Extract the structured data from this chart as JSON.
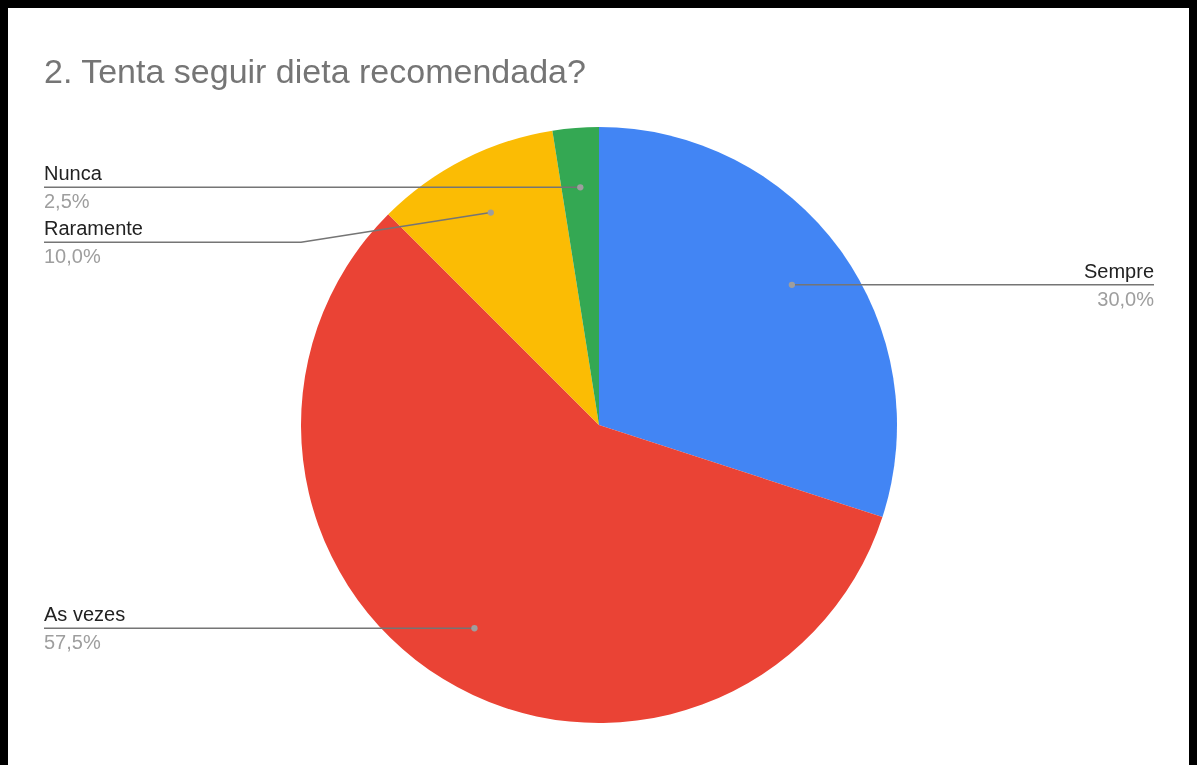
{
  "chart_data": {
    "type": "pie",
    "title": "2. Tenta seguir dieta recomendada?",
    "categories": [
      "Sempre",
      "As vezes",
      "Raramente",
      "Nunca"
    ],
    "values": [
      30,
      57.5,
      10,
      2.5
    ],
    "colors": [
      "#4285f4",
      "#ea4335",
      "#fbbc04",
      "#34a853"
    ],
    "value_labels": [
      "30,0%",
      "57,5%",
      "10,0%",
      "2,5%"
    ]
  }
}
